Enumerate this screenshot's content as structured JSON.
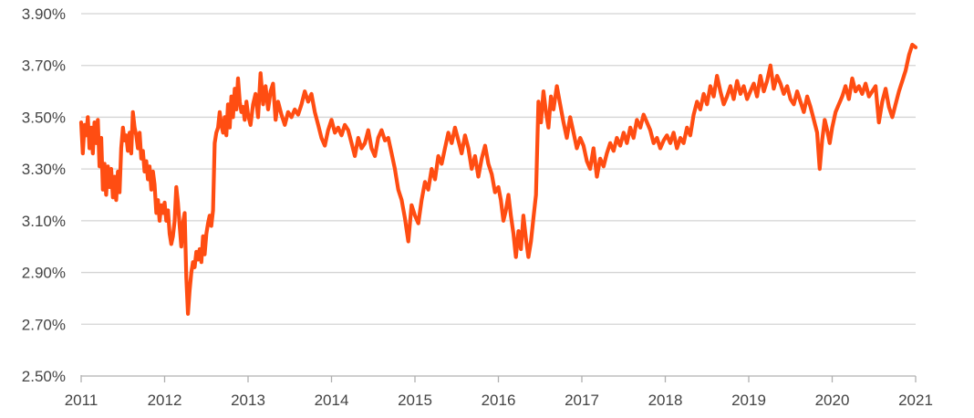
{
  "chart_data": {
    "type": "line",
    "title": "",
    "xlabel": "",
    "ylabel": "",
    "x_ticks": [
      "2011",
      "2012",
      "2013",
      "2014",
      "2015",
      "2016",
      "2017",
      "2018",
      "2019",
      "2020",
      "2021"
    ],
    "y_ticks": [
      "2.50%",
      "2.70%",
      "2.90%",
      "3.10%",
      "3.30%",
      "3.50%",
      "3.70%",
      "3.90%"
    ],
    "xlim": [
      2011.0,
      2021.0
    ],
    "ylim": [
      2.5,
      3.9
    ],
    "grid": "horizontal",
    "legend": "none",
    "line_color": "#ff4d12",
    "grid_color": "#d4d4d4",
    "series": [
      {
        "x": [
          2011.0,
          2011.02,
          2011.04,
          2011.06,
          2011.08,
          2011.1,
          2011.12,
          2011.14,
          2011.16,
          2011.18,
          2011.2,
          2011.22,
          2011.24,
          2011.26,
          2011.28,
          2011.3,
          2011.32,
          2011.34,
          2011.36,
          2011.38,
          2011.4,
          2011.42,
          2011.44,
          2011.46,
          2011.48,
          2011.5,
          2011.52,
          2011.54,
          2011.56,
          2011.58,
          2011.6,
          2011.62,
          2011.64,
          2011.66,
          2011.68,
          2011.7,
          2011.72,
          2011.74,
          2011.76,
          2011.78,
          2011.8,
          2011.82,
          2011.84,
          2011.86,
          2011.88,
          2011.9,
          2011.92,
          2011.94,
          2011.96,
          2011.98,
          2012.0,
          2012.02,
          2012.04,
          2012.06,
          2012.08,
          2012.1,
          2012.12,
          2012.14,
          2012.16,
          2012.18,
          2012.2,
          2012.22,
          2012.24,
          2012.26,
          2012.28,
          2012.3,
          2012.32,
          2012.34,
          2012.36,
          2012.38,
          2012.4,
          2012.42,
          2012.44,
          2012.46,
          2012.48,
          2012.5,
          2012.52,
          2012.54,
          2012.56,
          2012.58,
          2012.6,
          2012.62,
          2012.64,
          2012.66,
          2012.68,
          2012.7,
          2012.72,
          2012.74,
          2012.76,
          2012.78,
          2012.8,
          2012.82,
          2012.84,
          2012.86,
          2012.88,
          2012.9,
          2012.92,
          2012.94,
          2012.96,
          2012.98,
          2013.0,
          2013.03,
          2013.06,
          2013.09,
          2013.12,
          2013.15,
          2013.18,
          2013.21,
          2013.24,
          2013.27,
          2013.3,
          2013.33,
          2013.36,
          2013.4,
          2013.44,
          2013.48,
          2013.52,
          2013.56,
          2013.6,
          2013.64,
          2013.68,
          2013.72,
          2013.76,
          2013.8,
          2013.84,
          2013.88,
          2013.92,
          2013.96,
          2014.0,
          2014.04,
          2014.08,
          2014.12,
          2014.16,
          2014.2,
          2014.24,
          2014.28,
          2014.32,
          2014.36,
          2014.4,
          2014.44,
          2014.48,
          2014.52,
          2014.56,
          2014.6,
          2014.64,
          2014.68,
          2014.72,
          2014.76,
          2014.8,
          2014.84,
          2014.88,
          2014.92,
          2014.96,
          2015.0,
          2015.04,
          2015.08,
          2015.12,
          2015.16,
          2015.2,
          2015.24,
          2015.28,
          2015.32,
          2015.36,
          2015.4,
          2015.44,
          2015.48,
          2015.52,
          2015.56,
          2015.6,
          2015.64,
          2015.68,
          2015.72,
          2015.76,
          2015.8,
          2015.84,
          2015.88,
          2015.92,
          2015.96,
          2016.0,
          2016.03,
          2016.06,
          2016.09,
          2016.12,
          2016.15,
          2016.18,
          2016.21,
          2016.24,
          2016.27,
          2016.3,
          2016.33,
          2016.36,
          2016.39,
          2016.42,
          2016.45,
          2016.48,
          2016.51,
          2016.54,
          2016.57,
          2016.6,
          2016.63,
          2016.66,
          2016.7,
          2016.74,
          2016.78,
          2016.82,
          2016.86,
          2016.9,
          2016.94,
          2016.98,
          2017.02,
          2017.06,
          2017.1,
          2017.14,
          2017.18,
          2017.22,
          2017.26,
          2017.3,
          2017.34,
          2017.38,
          2017.42,
          2017.46,
          2017.5,
          2017.54,
          2017.58,
          2017.62,
          2017.66,
          2017.7,
          2017.74,
          2017.78,
          2017.82,
          2017.86,
          2017.9,
          2017.94,
          2017.98,
          2018.02,
          2018.06,
          2018.1,
          2018.14,
          2018.18,
          2018.22,
          2018.26,
          2018.3,
          2018.34,
          2018.38,
          2018.42,
          2018.46,
          2018.5,
          2018.54,
          2018.58,
          2018.62,
          2018.66,
          2018.7,
          2018.74,
          2018.78,
          2018.82,
          2018.86,
          2018.9,
          2018.94,
          2018.98,
          2019.02,
          2019.06,
          2019.1,
          2019.14,
          2019.18,
          2019.22,
          2019.26,
          2019.3,
          2019.34,
          2019.38,
          2019.42,
          2019.46,
          2019.5,
          2019.54,
          2019.58,
          2019.62,
          2019.66,
          2019.7,
          2019.74,
          2019.78,
          2019.82,
          2019.85,
          2019.88,
          2019.91,
          2019.94,
          2019.97,
          2020.0,
          2020.04,
          2020.08,
          2020.12,
          2020.16,
          2020.2,
          2020.24,
          2020.28,
          2020.32,
          2020.36,
          2020.4,
          2020.44,
          2020.48,
          2020.52,
          2020.56,
          2020.6,
          2020.64,
          2020.68,
          2020.72,
          2020.76,
          2020.8,
          2020.84,
          2020.88,
          2020.92,
          2020.96,
          2021.0
        ],
        "y": [
          3.48,
          3.36,
          3.47,
          3.43,
          3.5,
          3.38,
          3.46,
          3.36,
          3.48,
          3.4,
          3.49,
          3.31,
          3.42,
          3.22,
          3.32,
          3.2,
          3.31,
          3.23,
          3.3,
          3.19,
          3.27,
          3.18,
          3.29,
          3.21,
          3.38,
          3.46,
          3.41,
          3.43,
          3.37,
          3.44,
          3.36,
          3.52,
          3.46,
          3.43,
          3.38,
          3.44,
          3.34,
          3.37,
          3.29,
          3.33,
          3.26,
          3.31,
          3.22,
          3.29,
          3.24,
          3.13,
          3.18,
          3.1,
          3.16,
          3.13,
          3.17,
          3.1,
          3.14,
          3.05,
          3.01,
          3.04,
          3.1,
          3.23,
          3.17,
          3.08,
          3.0,
          3.09,
          3.13,
          2.88,
          2.74,
          2.83,
          2.9,
          2.94,
          2.92,
          2.98,
          2.95,
          2.99,
          2.94,
          3.04,
          2.97,
          3.05,
          3.09,
          3.12,
          3.08,
          3.14,
          3.4,
          3.44,
          3.46,
          3.52,
          3.47,
          3.44,
          3.5,
          3.43,
          3.55,
          3.46,
          3.58,
          3.5,
          3.61,
          3.53,
          3.65,
          3.56,
          3.52,
          3.54,
          3.49,
          3.56,
          3.51,
          3.47,
          3.55,
          3.59,
          3.5,
          3.67,
          3.55,
          3.62,
          3.53,
          3.6,
          3.63,
          3.49,
          3.56,
          3.51,
          3.47,
          3.52,
          3.5,
          3.53,
          3.51,
          3.55,
          3.6,
          3.56,
          3.59,
          3.52,
          3.47,
          3.42,
          3.39,
          3.45,
          3.49,
          3.44,
          3.46,
          3.43,
          3.47,
          3.45,
          3.4,
          3.35,
          3.42,
          3.38,
          3.4,
          3.45,
          3.38,
          3.35,
          3.42,
          3.45,
          3.41,
          3.42,
          3.36,
          3.3,
          3.22,
          3.18,
          3.11,
          3.02,
          3.16,
          3.12,
          3.09,
          3.18,
          3.25,
          3.22,
          3.3,
          3.26,
          3.35,
          3.32,
          3.38,
          3.44,
          3.4,
          3.46,
          3.41,
          3.36,
          3.43,
          3.38,
          3.3,
          3.35,
          3.27,
          3.34,
          3.39,
          3.32,
          3.28,
          3.21,
          3.23,
          3.18,
          3.1,
          3.14,
          3.2,
          3.12,
          3.05,
          2.96,
          3.06,
          2.99,
          3.12,
          3.03,
          2.96,
          3.02,
          3.11,
          3.2,
          3.56,
          3.48,
          3.6,
          3.52,
          3.46,
          3.58,
          3.53,
          3.62,
          3.55,
          3.48,
          3.42,
          3.5,
          3.44,
          3.38,
          3.42,
          3.39,
          3.33,
          3.3,
          3.38,
          3.27,
          3.34,
          3.31,
          3.36,
          3.4,
          3.37,
          3.42,
          3.39,
          3.44,
          3.4,
          3.46,
          3.42,
          3.49,
          3.46,
          3.51,
          3.48,
          3.45,
          3.4,
          3.42,
          3.38,
          3.41,
          3.43,
          3.4,
          3.44,
          3.38,
          3.42,
          3.4,
          3.46,
          3.43,
          3.51,
          3.56,
          3.53,
          3.59,
          3.55,
          3.62,
          3.58,
          3.66,
          3.6,
          3.55,
          3.58,
          3.62,
          3.57,
          3.64,
          3.59,
          3.62,
          3.57,
          3.6,
          3.63,
          3.58,
          3.66,
          3.6,
          3.64,
          3.7,
          3.61,
          3.66,
          3.63,
          3.59,
          3.62,
          3.57,
          3.55,
          3.6,
          3.56,
          3.52,
          3.58,
          3.54,
          3.49,
          3.44,
          3.3,
          3.41,
          3.49,
          3.45,
          3.4,
          3.46,
          3.52,
          3.55,
          3.58,
          3.62,
          3.57,
          3.65,
          3.6,
          3.62,
          3.59,
          3.63,
          3.58,
          3.6,
          3.62,
          3.48,
          3.56,
          3.61,
          3.54,
          3.5,
          3.55,
          3.6,
          3.64,
          3.68,
          3.74,
          3.78,
          3.77
        ]
      }
    ]
  }
}
